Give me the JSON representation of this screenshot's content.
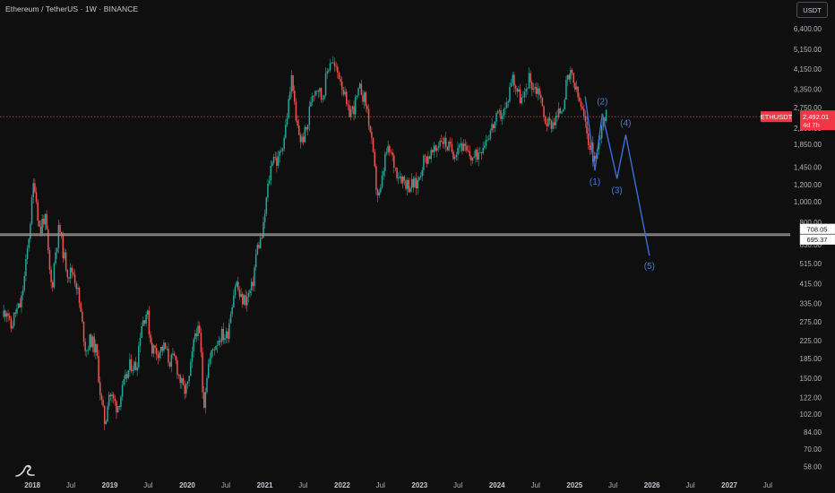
{
  "header": {
    "title": "Ethereum / TetherUS · 1W · BINANCE"
  },
  "toolbar": {
    "currency": "USDT"
  },
  "colors": {
    "up": "#26a69a",
    "down": "#ef5350",
    "wave": "#3b6fd8",
    "level": "#8a8a8a",
    "price_tag": "#f23645"
  },
  "price_tag": {
    "symbol": "ETHUSDT",
    "price": "2,492.01",
    "countdown": "4d 7h"
  },
  "levels": [
    {
      "price": 708.05,
      "label": "708.05"
    },
    {
      "price": 695.37,
      "label": "695.37"
    }
  ],
  "chart_data": {
    "type": "candlestick",
    "title": "Ethereum / TetherUS · 1W · BINANCE",
    "y_scale": "log",
    "ylim": [
      52,
      7200
    ],
    "xlim": [
      "2017-08-01",
      "2027-10-15"
    ],
    "y_ticks": [
      6400,
      5150,
      4150,
      3350,
      2750,
      2200,
      1850,
      1450,
      1200,
      1000,
      800,
      630,
      515,
      415,
      335,
      275,
      225,
      185,
      150,
      122,
      102,
      84,
      70,
      58
    ],
    "x_ticks": [
      {
        "label": "2018",
        "date": "2018-01-01",
        "bold": true
      },
      {
        "label": "Jul",
        "date": "2018-07-01"
      },
      {
        "label": "2019",
        "date": "2019-01-01",
        "bold": true
      },
      {
        "label": "Jul",
        "date": "2019-07-01"
      },
      {
        "label": "2020",
        "date": "2020-01-01",
        "bold": true
      },
      {
        "label": "Jul",
        "date": "2020-07-01"
      },
      {
        "label": "2021",
        "date": "2021-01-01",
        "bold": true
      },
      {
        "label": "Jul",
        "date": "2021-07-01"
      },
      {
        "label": "2022",
        "date": "2022-01-01",
        "bold": true
      },
      {
        "label": "Jul",
        "date": "2022-07-01"
      },
      {
        "label": "2023",
        "date": "2023-01-01",
        "bold": true
      },
      {
        "label": "Jul",
        "date": "2023-07-01"
      },
      {
        "label": "2024",
        "date": "2024-01-01",
        "bold": true
      },
      {
        "label": "Jul",
        "date": "2024-07-01"
      },
      {
        "label": "2025",
        "date": "2025-01-01",
        "bold": true
      },
      {
        "label": "Jul",
        "date": "2025-07-01"
      },
      {
        "label": "2026",
        "date": "2026-01-01",
        "bold": true
      },
      {
        "label": "Jul",
        "date": "2026-07-01"
      },
      {
        "label": "2027",
        "date": "2027-01-01",
        "bold": true
      },
      {
        "label": "Jul",
        "date": "2027-07-01"
      }
    ],
    "price_path": [
      [
        "2017-08-14",
        300
      ],
      [
        "2017-09-04",
        320
      ],
      [
        "2017-09-18",
        250
      ],
      [
        "2017-10-09",
        300
      ],
      [
        "2017-11-06",
        330
      ],
      [
        "2017-11-27",
        470
      ],
      [
        "2017-12-18",
        750
      ],
      [
        "2018-01-08",
        1300
      ],
      [
        "2018-01-15",
        1100
      ],
      [
        "2018-02-05",
        700
      ],
      [
        "2018-02-19",
        850
      ],
      [
        "2018-03-05",
        800
      ],
      [
        "2018-03-19",
        500
      ],
      [
        "2018-04-02",
        390
      ],
      [
        "2018-04-16",
        560
      ],
      [
        "2018-05-07",
        770
      ],
      [
        "2018-05-28",
        560
      ],
      [
        "2018-06-18",
        460
      ],
      [
        "2018-07-09",
        480
      ],
      [
        "2018-07-30",
        400
      ],
      [
        "2018-08-20",
        280
      ],
      [
        "2018-09-10",
        200
      ],
      [
        "2018-10-01",
        230
      ],
      [
        "2018-10-29",
        200
      ],
      [
        "2018-11-19",
        120
      ],
      [
        "2018-12-10",
        90
      ],
      [
        "2018-12-24",
        130
      ],
      [
        "2019-01-14",
        120
      ],
      [
        "2019-02-04",
        110
      ],
      [
        "2019-03-04",
        135
      ],
      [
        "2019-04-08",
        175
      ],
      [
        "2019-05-06",
        170
      ],
      [
        "2019-05-27",
        265
      ],
      [
        "2019-06-24",
        310
      ],
      [
        "2019-07-15",
        210
      ],
      [
        "2019-08-12",
        200
      ],
      [
        "2019-09-16",
        210
      ],
      [
        "2019-10-07",
        180
      ],
      [
        "2019-11-04",
        185
      ],
      [
        "2019-11-25",
        150
      ],
      [
        "2019-12-16",
        130
      ],
      [
        "2020-01-06",
        140
      ],
      [
        "2020-02-10",
        260
      ],
      [
        "2020-03-02",
        230
      ],
      [
        "2020-03-16",
        110
      ],
      [
        "2020-04-06",
        170
      ],
      [
        "2020-05-04",
        210
      ],
      [
        "2020-06-08",
        240
      ],
      [
        "2020-07-06",
        235
      ],
      [
        "2020-07-27",
        330
      ],
      [
        "2020-08-17",
        430
      ],
      [
        "2020-09-07",
        350
      ],
      [
        "2020-10-05",
        350
      ],
      [
        "2020-11-02",
        400
      ],
      [
        "2020-11-23",
        600
      ],
      [
        "2020-12-21",
        700
      ],
      [
        "2021-01-11",
        1100
      ],
      [
        "2021-02-08",
        1700
      ],
      [
        "2021-03-01",
        1500
      ],
      [
        "2021-04-05",
        2100
      ],
      [
        "2021-05-10",
        4000
      ],
      [
        "2021-05-24",
        2400
      ],
      [
        "2021-06-21",
        1900
      ],
      [
        "2021-07-19",
        2200
      ],
      [
        "2021-08-09",
        3200
      ],
      [
        "2021-09-06",
        3500
      ],
      [
        "2021-09-27",
        3000
      ],
      [
        "2021-10-25",
        4200
      ],
      [
        "2021-11-08",
        4700
      ],
      [
        "2021-11-29",
        4100
      ],
      [
        "2021-12-20",
        3900
      ],
      [
        "2022-01-10",
        3200
      ],
      [
        "2022-01-24",
        2600
      ],
      [
        "2022-02-21",
        2700
      ],
      [
        "2022-03-28",
        3400
      ],
      [
        "2022-04-25",
        2800
      ],
      [
        "2022-05-16",
        2000
      ],
      [
        "2022-06-13",
        1100
      ],
      [
        "2022-06-27",
        1050
      ],
      [
        "2022-07-25",
        1700
      ],
      [
        "2022-08-15",
        1700
      ],
      [
        "2022-09-12",
        1400
      ],
      [
        "2022-10-10",
        1300
      ],
      [
        "2022-11-07",
        1200
      ],
      [
        "2022-12-19",
        1200
      ],
      [
        "2023-01-16",
        1550
      ],
      [
        "2023-02-13",
        1650
      ],
      [
        "2023-03-13",
        1700
      ],
      [
        "2023-04-10",
        2000
      ],
      [
        "2023-05-15",
        1800
      ],
      [
        "2023-06-12",
        1700
      ],
      [
        "2023-07-10",
        1900
      ],
      [
        "2023-08-14",
        1650
      ],
      [
        "2023-09-18",
        1600
      ],
      [
        "2023-10-16",
        1800
      ],
      [
        "2023-11-06",
        1950
      ],
      [
        "2023-12-11",
        2250
      ],
      [
        "2024-01-08",
        2500
      ],
      [
        "2024-02-12",
        2700
      ],
      [
        "2024-03-11",
        3900
      ],
      [
        "2024-04-15",
        3100
      ],
      [
        "2024-05-06",
        2950
      ],
      [
        "2024-05-27",
        3800
      ],
      [
        "2024-06-24",
        3400
      ],
      [
        "2024-07-22",
        3300
      ],
      [
        "2024-08-05",
        2500
      ],
      [
        "2024-09-02",
        2300
      ],
      [
        "2024-10-07",
        2450
      ],
      [
        "2024-11-04",
        2800
      ],
      [
        "2024-11-25",
        3600
      ],
      [
        "2024-12-16",
        3900
      ],
      [
        "2025-01-06",
        3300
      ],
      [
        "2025-02-03",
        2700
      ],
      [
        "2025-03-03",
        2000
      ],
      [
        "2025-04-07",
        1550
      ],
      [
        "2025-04-21",
        1800
      ],
      [
        "2025-05-12",
        2500
      ],
      [
        "2025-05-26",
        2492
      ]
    ],
    "projection": [
      {
        "date": "2025-02-20",
        "price": 3100
      },
      {
        "date": "2025-04-07",
        "price": 1400,
        "label": "(1)"
      },
      {
        "date": "2025-05-12",
        "price": 2580,
        "label": "(2)"
      },
      {
        "date": "2025-07-20",
        "price": 1280,
        "label": "(3)"
      },
      {
        "date": "2025-08-30",
        "price": 2050,
        "label": "(4)"
      },
      {
        "date": "2025-12-20",
        "price": 560,
        "label": "(5)"
      }
    ],
    "last_price": 2492.01
  }
}
